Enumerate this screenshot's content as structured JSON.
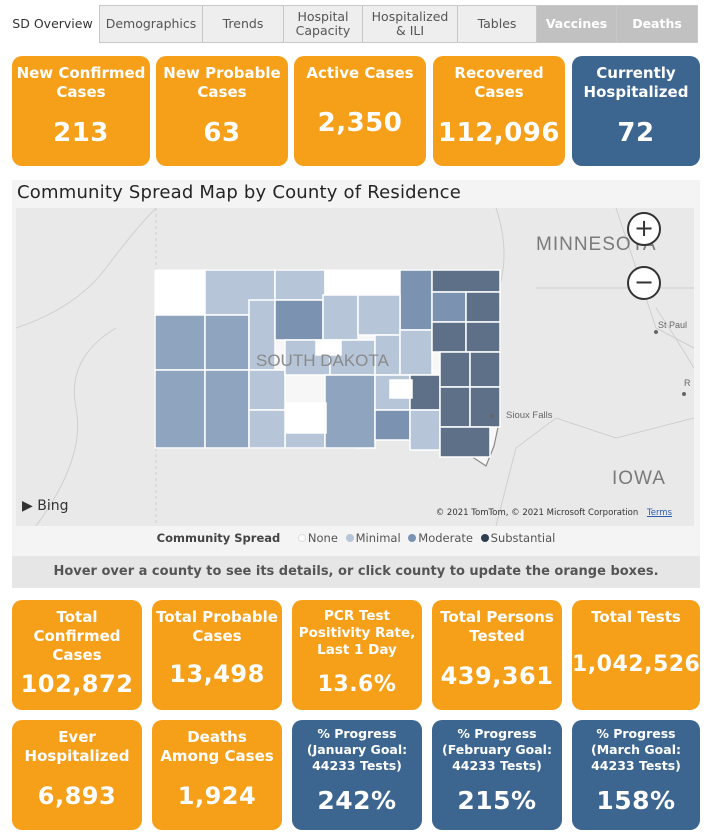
{
  "tabs": [
    {
      "label": "SD Overview",
      "style": "active"
    },
    {
      "label": "Demographics",
      "style": "normal"
    },
    {
      "label": "Trends",
      "style": "normal"
    },
    {
      "label": "Hospital Capacity",
      "style": "normal"
    },
    {
      "label": "Hospitalized & ILI",
      "style": "normal"
    },
    {
      "label": "Tables",
      "style": "normal"
    },
    {
      "label": "Vaccines",
      "style": "dark"
    },
    {
      "label": "Deaths",
      "style": "dark"
    }
  ],
  "top_cards": [
    {
      "label": "New Confirmed Cases",
      "value": "213",
      "color": "orange"
    },
    {
      "label": "New Probable Cases",
      "value": "63",
      "color": "orange"
    },
    {
      "label": "Active Cases",
      "value": "2,350",
      "color": "orange"
    },
    {
      "label": "Recovered Cases",
      "value": "112,096",
      "color": "orange"
    },
    {
      "label": "Currently Hospitalized",
      "value": "72",
      "color": "blue"
    }
  ],
  "map": {
    "title": "Community Spread Map by County of Residence",
    "labels": {
      "state": "SOUTH DAKOTA",
      "minnesota": "MINNESOTA",
      "iowa": "IOWA",
      "sioux_falls": "Sioux Falls",
      "st_paul": "St Paul",
      "r_label": "R"
    },
    "zoom_in_symbol": "+",
    "zoom_out_symbol": "−",
    "bing_label": "Bing",
    "attribution": "© 2021 TomTom, © 2021 Microsoft Corporation",
    "terms_label": "Terms",
    "legend_title": "Community Spread",
    "legend": [
      {
        "label": "None",
        "color": "#ffffff"
      },
      {
        "label": "Minimal",
        "color": "#b6c5d8"
      },
      {
        "label": "Moderate",
        "color": "#7b93b1"
      },
      {
        "label": "Substantial",
        "color": "#2f3e52"
      }
    ]
  },
  "hint": "Hover over a county to see its details, or click county to update the orange boxes.",
  "bottom_cards_row1": [
    {
      "label": "Total Confirmed Cases",
      "value": "102,872",
      "color": "orange"
    },
    {
      "label": "Total Probable Cases",
      "value": "13,498",
      "color": "orange"
    },
    {
      "label": "PCR Test Positivity Rate, Last 1 Day",
      "value": "13.6%",
      "color": "orange"
    },
    {
      "label": "Total Persons Tested",
      "value": "439,361",
      "color": "orange"
    },
    {
      "label": "Total Tests",
      "value": "1,042,526",
      "color": "orange"
    }
  ],
  "bottom_cards_row2": [
    {
      "label": "Ever Hospitalized",
      "value": "6,893",
      "color": "orange"
    },
    {
      "label": "Deaths Among Cases",
      "value": "1,924",
      "color": "orange"
    },
    {
      "label": "% Progress (January Goal: 44233 Tests)",
      "value": "242%",
      "color": "blue"
    },
    {
      "label": "% Progress (February Goal: 44233 Tests)",
      "value": "215%",
      "color": "blue"
    },
    {
      "label": "% Progress (March Goal: 44233 Tests)",
      "value": "158%",
      "color": "blue"
    }
  ]
}
